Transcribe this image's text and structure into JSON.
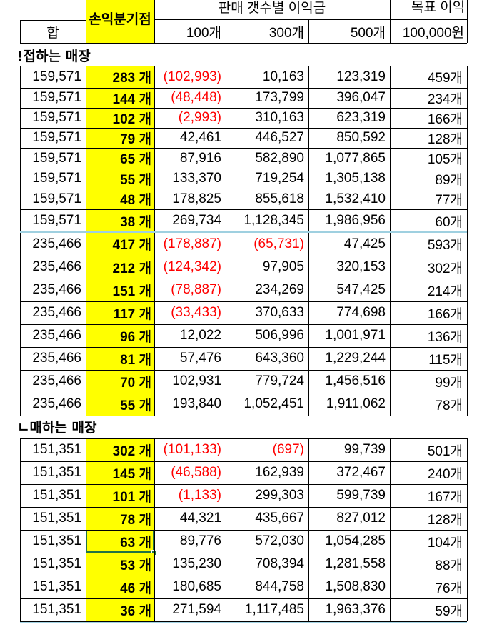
{
  "header": {
    "top_group_label": "판매 갯수별 이익금",
    "top_target_label": "목표 이익",
    "top_left_fragment": "",
    "sum_label": "합",
    "breakeven_label": "손익분기점",
    "col_100": "100개",
    "col_300": "300개",
    "col_500": "500개",
    "col_target": "100,000원"
  },
  "sections": [
    {
      "title": "!접하는 매장",
      "rows": [
        {
          "sum": "159,571",
          "be": "283 개",
          "p100": "(102,993)",
          "p300": "10,163",
          "p500": "123,319",
          "target": "459개"
        },
        {
          "sum": "159,571",
          "be": "144 개",
          "p100": "(48,448)",
          "p300": "173,799",
          "p500": "396,047",
          "target": "234개"
        },
        {
          "sum": "159,571",
          "be": "102 개",
          "p100": "(2,993)",
          "p300": "310,163",
          "p500": "623,319",
          "target": "166개"
        },
        {
          "sum": "159,571",
          "be": "79 개",
          "p100": "42,461",
          "p300": "446,527",
          "p500": "850,592",
          "target": "128개"
        },
        {
          "sum": "159,571",
          "be": "65 개",
          "p100": "87,916",
          "p300": "582,890",
          "p500": "1,077,865",
          "target": "105개"
        },
        {
          "sum": "159,571",
          "be": "55 개",
          "p100": "133,370",
          "p300": "719,254",
          "p500": "1,305,138",
          "target": "89개"
        },
        {
          "sum": "159,571",
          "be": "48 개",
          "p100": "178,825",
          "p300": "855,618",
          "p500": "1,532,410",
          "target": "77개"
        },
        {
          "sum": "159,571",
          "be": "38 개",
          "p100": "269,734",
          "p300": "1,128,345",
          "p500": "1,986,956",
          "target": "60개"
        },
        {
          "sum": "235,466",
          "be": "417 개",
          "p100": "(178,887)",
          "p300": "(65,731)",
          "p500": "47,425",
          "target": "593개"
        },
        {
          "sum": "235,466",
          "be": "212 개",
          "p100": "(124,342)",
          "p300": "97,905",
          "p500": "320,153",
          "target": "302개"
        },
        {
          "sum": "235,466",
          "be": "151 개",
          "p100": "(78,887)",
          "p300": "234,269",
          "p500": "547,425",
          "target": "214개"
        },
        {
          "sum": "235,466",
          "be": "117 개",
          "p100": "(33,433)",
          "p300": "370,633",
          "p500": "774,698",
          "target": "166개"
        },
        {
          "sum": "235,466",
          "be": "96 개",
          "p100": "12,022",
          "p300": "506,996",
          "p500": "1,001,971",
          "target": "136개"
        },
        {
          "sum": "235,466",
          "be": "81 개",
          "p100": "57,476",
          "p300": "643,360",
          "p500": "1,229,244",
          "target": "115개"
        },
        {
          "sum": "235,466",
          "be": "70 개",
          "p100": "102,931",
          "p300": "779,724",
          "p500": "1,456,516",
          "target": "99개"
        },
        {
          "sum": "235,466",
          "be": "55 개",
          "p100": "193,840",
          "p300": "1,052,451",
          "p500": "1,911,062",
          "target": "78개"
        }
      ]
    },
    {
      "title": "ㄴ매하는 매장",
      "rows": [
        {
          "sum": "151,351",
          "be": "302 개",
          "p100": "(101,133)",
          "p300": "(697)",
          "p500": "99,739",
          "target": "501개"
        },
        {
          "sum": "151,351",
          "be": "145 개",
          "p100": "(46,588)",
          "p300": "162,939",
          "p500": "372,467",
          "target": "240개"
        },
        {
          "sum": "151,351",
          "be": "101 개",
          "p100": "(1,133)",
          "p300": "299,303",
          "p500": "599,739",
          "target": "167개"
        },
        {
          "sum": "151,351",
          "be": "78 개",
          "p100": "44,321",
          "p300": "435,667",
          "p500": "827,012",
          "target": "128개"
        },
        {
          "sum": "151,351",
          "be": "63 개",
          "p100": "89,776",
          "p300": "572,030",
          "p500": "1,054,285",
          "target": "104개"
        },
        {
          "sum": "151,351",
          "be": "53 개",
          "p100": "135,230",
          "p300": "708,394",
          "p500": "1,281,558",
          "target": "88개"
        },
        {
          "sum": "151,351",
          "be": "46 개",
          "p100": "180,685",
          "p300": "844,758",
          "p500": "1,508,830",
          "target": "76개"
        },
        {
          "sum": "151,351",
          "be": "36 개",
          "p100": "271,594",
          "p300": "1,117,485",
          "p500": "1,963,376",
          "target": "59개"
        }
      ]
    }
  ],
  "colors": {
    "highlight": "#ffff00",
    "negative": "#ff0000",
    "selection": "#217346",
    "grid": "#000000"
  },
  "selected_cell": {
    "section": 1,
    "row": 4,
    "column": "breakeven"
  }
}
